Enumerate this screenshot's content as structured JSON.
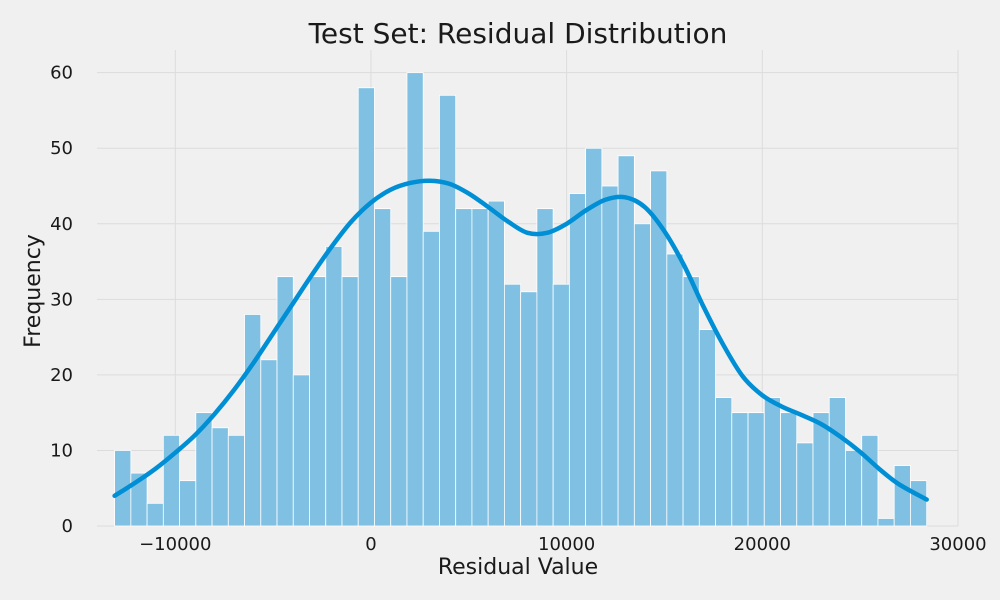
{
  "chart_data": {
    "type": "bar",
    "title": "Test Set: Residual Distribution",
    "xlabel": "Residual Value",
    "ylabel": "Frequency",
    "xlim": [
      -14000,
      30000
    ],
    "ylim": [
      0,
      63
    ],
    "xticks": [
      -10000,
      0,
      10000,
      20000,
      30000
    ],
    "xtick_labels": [
      "−10000",
      "0",
      "10000",
      "20000",
      "30000"
    ],
    "yticks": [
      0,
      10,
      20,
      30,
      40,
      50,
      60
    ],
    "ytick_labels": [
      "0",
      "10",
      "20",
      "30",
      "40",
      "50",
      "60"
    ],
    "grid": true,
    "bins": {
      "start": -13100,
      "width": 830,
      "counts": [
        10,
        7,
        3,
        12,
        6,
        15,
        13,
        12,
        28,
        22,
        33,
        20,
        33,
        37,
        33,
        58,
        42,
        33,
        60,
        39,
        57,
        42,
        42,
        43,
        32,
        31,
        42,
        32,
        44,
        50,
        45,
        49,
        40,
        47,
        36,
        33,
        26,
        17,
        15,
        15,
        17,
        15,
        11,
        15,
        17,
        10,
        12,
        1,
        8,
        6
      ]
    },
    "kde": {
      "x": [
        -13100,
        -12000,
        -11000,
        -10000,
        -9000,
        -8000,
        -7000,
        -6000,
        -5000,
        -4000,
        -3000,
        -2000,
        -1000,
        0,
        1000,
        2000,
        3000,
        4000,
        5000,
        6000,
        7000,
        8000,
        9000,
        10000,
        11000,
        12000,
        13000,
        14000,
        15000,
        16000,
        17000,
        18000,
        19000,
        20000,
        21000,
        22000,
        23000,
        24000,
        25000,
        26000,
        27000,
        28400
      ],
      "y": [
        4,
        5.8,
        7.6,
        9.7,
        12,
        14.8,
        18,
        21.6,
        25.5,
        29.4,
        33.3,
        37,
        40.3,
        42.8,
        44.5,
        45.4,
        45.7,
        45.3,
        44,
        42.2,
        40.3,
        38.8,
        38.8,
        40,
        41.8,
        43.2,
        43.5,
        42.2,
        39,
        34.5,
        29,
        24,
        19.8,
        17.3,
        15.8,
        14.7,
        13.5,
        11.8,
        9.8,
        7.5,
        5.5,
        3.5
      ]
    },
    "colors": {
      "bar_fill": "#80c1e3",
      "bar_edge": "#ffffff",
      "kde_line": "#008fd5",
      "grid": "#dcdcdc",
      "background": "#f0f0f0"
    }
  }
}
